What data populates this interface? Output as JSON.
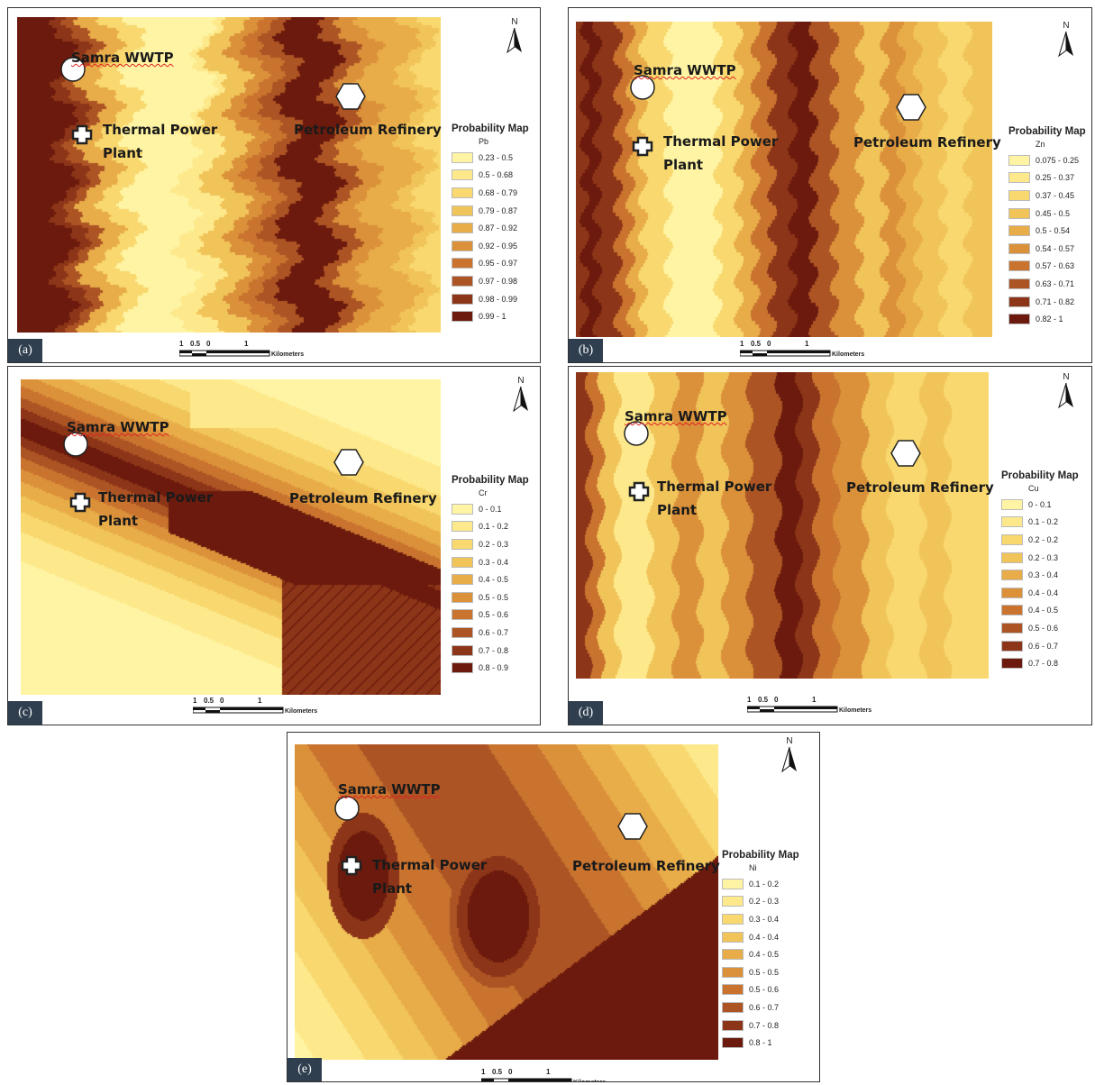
{
  "colors": {
    "ramp": [
      "#fff4a3",
      "#fde98b",
      "#f8d86f",
      "#f1c45a",
      "#e8ac48",
      "#db913a",
      "#c9732f",
      "#ad5424",
      "#8d3518",
      "#6b1a0d"
    ],
    "panel_tag_bg": "#2f3f4f"
  },
  "icons": {
    "north_arrow": "north-arrow-icon",
    "wwtp": "circle-marker-icon",
    "power_plant": "cross-marker-icon",
    "refinery": "hexagon-marker-icon"
  },
  "common": {
    "north_label": "N",
    "scale_ticks": [
      "1",
      "0.5",
      "0",
      "1"
    ],
    "scale_units": "Kilometers",
    "samra_label": "Samra WWTP",
    "power_label_1": "Thermal Power",
    "power_label_2": "Plant",
    "refinery_label": "Petroleum Refinery",
    "legend_title": "Probability Map"
  },
  "panels": [
    {
      "tag": "(a)",
      "element": "Pb",
      "classes": [
        "0.23 - 0.5",
        "0.5 - 0.68",
        "0.68 - 0.79",
        "0.79 - 0.87",
        "0.87 - 0.92",
        "0.92 - 0.95",
        "0.95 - 0.97",
        "0.97 - 0.98",
        "0.98 - 0.99",
        "0.99 - 1"
      ]
    },
    {
      "tag": "(b)",
      "element": "Zn",
      "classes": [
        "0.075 - 0.25",
        "0.25 - 0.37",
        "0.37 - 0.45",
        "0.45 - 0.5",
        "0.5 - 0.54",
        "0.54 - 0.57",
        "0.57 - 0.63",
        "0.63 - 0.71",
        "0.71 - 0.82",
        "0.82 - 1"
      ]
    },
    {
      "tag": "(c)",
      "element": "Cr",
      "classes": [
        "0 - 0.1",
        "0.1 - 0.2",
        "0.2 - 0.3",
        "0.3 - 0.4",
        "0.4 - 0.5",
        "0.5 - 0.5",
        "0.5 - 0.6",
        "0.6 - 0.7",
        "0.7 - 0.8",
        "0.8 - 0.9"
      ]
    },
    {
      "tag": "(d)",
      "element": "Cu",
      "classes": [
        "0 - 0.1",
        "0.1 - 0.2",
        "0.2 - 0.2",
        "0.2 - 0.3",
        "0.3 - 0.4",
        "0.4 - 0.4",
        "0.4 - 0.5",
        "0.5 - 0.6",
        "0.6 - 0.7",
        "0.7 - 0.8"
      ]
    },
    {
      "tag": "(e)",
      "element": "Ni",
      "classes": [
        "0.1 - 0.2",
        "0.2 - 0.3",
        "0.3 - 0.4",
        "0.4 - 0.4",
        "0.4 - 0.5",
        "0.5 - 0.5",
        "0.5 - 0.6",
        "0.6 - 0.7",
        "0.7 - 0.8",
        "0.8 - 1"
      ]
    }
  ]
}
